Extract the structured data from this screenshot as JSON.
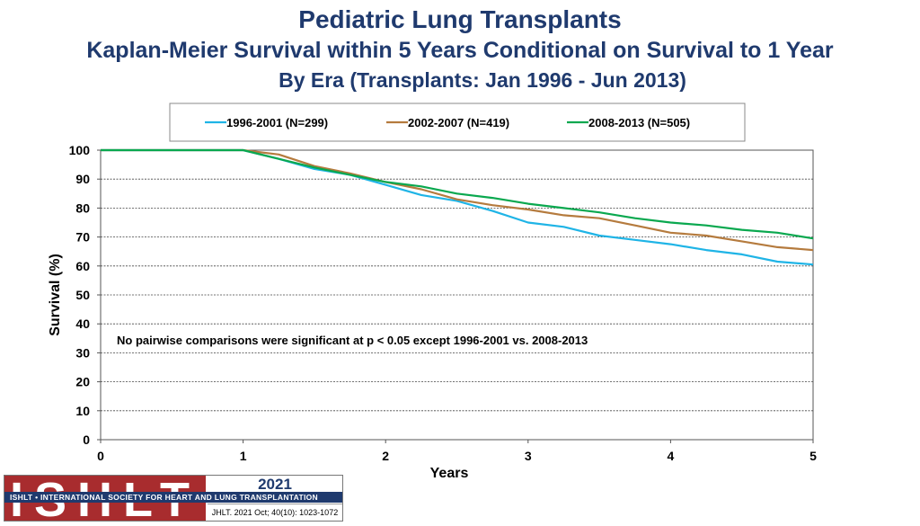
{
  "header": {
    "title": "Pediatric Lung Transplants",
    "subtitle": "Kaplan-Meier Survival within 5 Years Conditional on Survival to 1 Year",
    "subtitle2": "By Era (Transplants: Jan 1996 - Jun 2013)"
  },
  "footer": {
    "logo_text": "ISHLT",
    "org_name": "ISHLT • INTERNATIONAL SOCIETY FOR HEART AND LUNG TRANSPLANTATION",
    "year": "2021",
    "citation": "JHLT. 2021 Oct; 40(10): 1023-1072"
  },
  "colors": {
    "title": "#1f3a6e",
    "series1": "#1fb4e6",
    "series2": "#b57b3e",
    "series3": "#0aa84f"
  },
  "chart_data": {
    "type": "line",
    "xlabel": "Years",
    "ylabel": "Survival (%)",
    "xlim": [
      0,
      5
    ],
    "ylim": [
      0,
      100
    ],
    "xticks": [
      "0",
      "1",
      "2",
      "3",
      "4",
      "5"
    ],
    "yticks": [
      "0",
      "10",
      "20",
      "30",
      "40",
      "50",
      "60",
      "70",
      "80",
      "90",
      "100"
    ],
    "grid": "horizontal-dashed",
    "legend_position": "top",
    "annotation": "No pairwise comparisons were significant at p < 0.05 except 1996-2001 vs. 2008-2013",
    "series": [
      {
        "name": "1996-2001 (N=299)",
        "color": "#1fb4e6",
        "x": [
          0,
          1,
          1.25,
          1.5,
          1.75,
          2,
          2.25,
          2.5,
          2.75,
          3,
          3.25,
          3.5,
          3.75,
          4,
          4.25,
          4.5,
          4.75,
          5
        ],
        "y": [
          100,
          100,
          97,
          93.5,
          91.5,
          88,
          84.5,
          82.5,
          79,
          75,
          73.5,
          70.5,
          69,
          67.5,
          65.5,
          64,
          61.5,
          60.5
        ]
      },
      {
        "name": "2002-2007 (N=419)",
        "color": "#b57b3e",
        "x": [
          0,
          1,
          1.25,
          1.5,
          1.75,
          2,
          2.25,
          2.5,
          2.75,
          3,
          3.25,
          3.5,
          3.75,
          4,
          4.25,
          4.5,
          4.75,
          5
        ],
        "y": [
          100,
          100,
          98.5,
          94.5,
          92,
          89,
          86.5,
          83,
          81,
          79.5,
          77.5,
          76.5,
          74,
          71.5,
          70.5,
          68.5,
          66.5,
          65.5
        ]
      },
      {
        "name": "2008-2013 (N=505)",
        "color": "#0aa84f",
        "x": [
          0,
          1,
          1.25,
          1.5,
          1.75,
          2,
          2.25,
          2.5,
          2.75,
          3,
          3.25,
          3.5,
          3.75,
          4,
          4.25,
          4.5,
          4.75,
          5
        ],
        "y": [
          100,
          100,
          97,
          94,
          91.5,
          89,
          87.5,
          85,
          83.5,
          81.5,
          80,
          78.5,
          76.5,
          75,
          74,
          72.5,
          71.5,
          69.5
        ]
      }
    ]
  }
}
